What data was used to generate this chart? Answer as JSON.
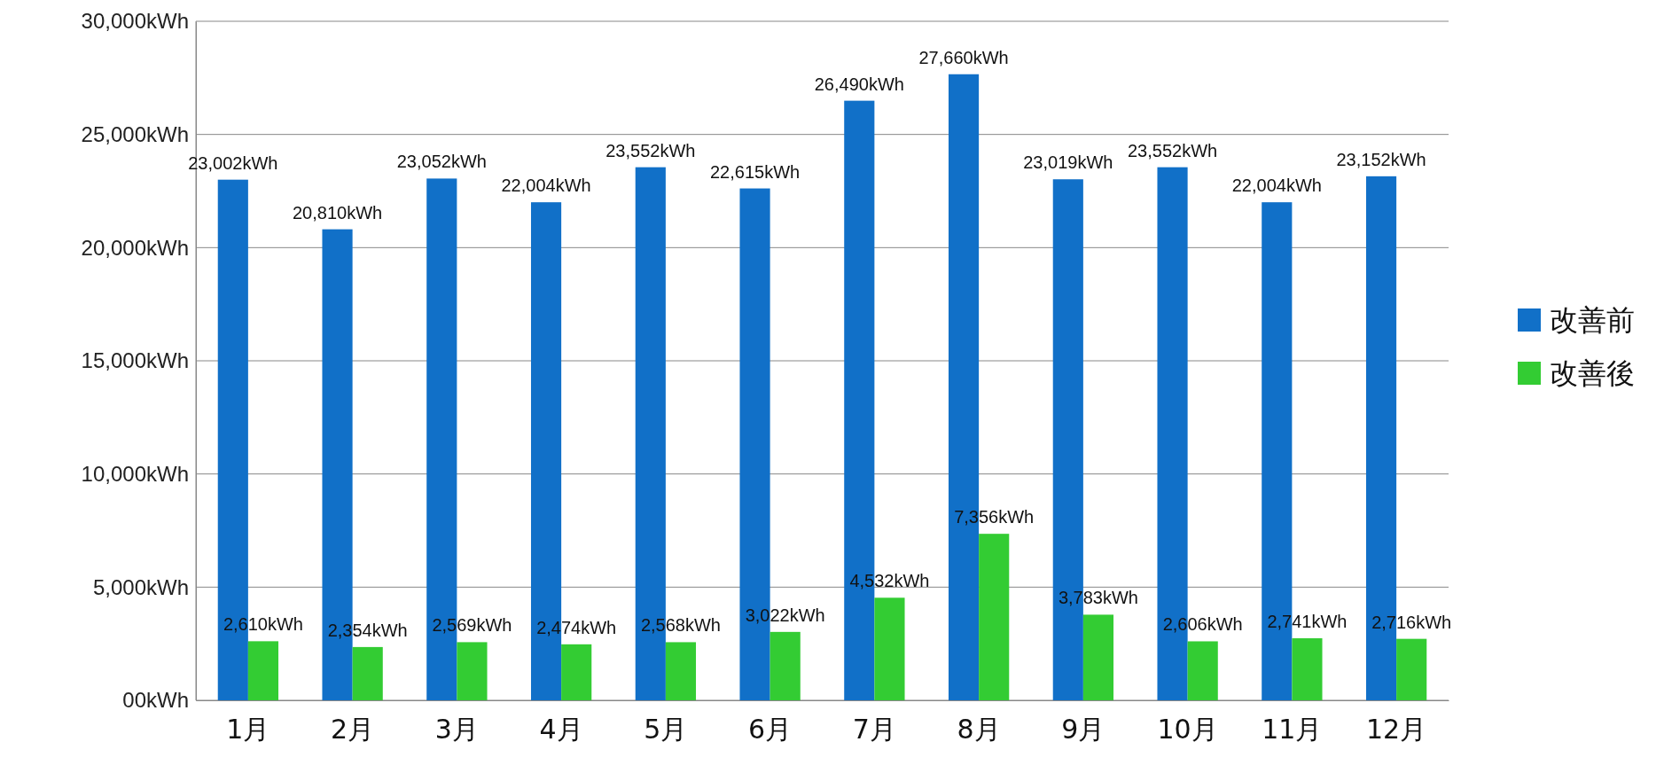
{
  "chart_data": {
    "type": "bar",
    "categories": [
      "1月",
      "2月",
      "3月",
      "4月",
      "5月",
      "6月",
      "7月",
      "8月",
      "9月",
      "10月",
      "11月",
      "12月"
    ],
    "series": [
      {
        "name": "改善前",
        "color": "#1170c8",
        "values": [
          23002,
          20810,
          23052,
          22004,
          23552,
          22615,
          26490,
          27660,
          23019,
          23552,
          22004,
          23152
        ],
        "value_labels": [
          "23,002kWh",
          "20,810kWh",
          "23,052kWh",
          "22,004kWh",
          "23,552kWh",
          "22,615kWh",
          "26,490kWh",
          "27,660kWh",
          "23,019kWh",
          "23,552kWh",
          "22,004kWh",
          "23,152kWh"
        ]
      },
      {
        "name": "改善後",
        "color": "#33cc33",
        "values": [
          2610,
          2354,
          2569,
          2474,
          2568,
          3022,
          4532,
          7356,
          3783,
          2606,
          2741,
          2716
        ],
        "value_labels": [
          "2,610kWh",
          "2,354kWh",
          "2,569kWh",
          "2,474kWh",
          "2,568kWh",
          "3,022kWh",
          "4,532kWh",
          "7,356kWh",
          "3,783kWh",
          "2,606kWh",
          "2,741kWh",
          "2,716kWh"
        ]
      }
    ],
    "ylim": [
      0,
      30000
    ],
    "yticks": [
      {
        "value": 0,
        "label": "00kWh"
      },
      {
        "value": 5000,
        "label": "5,000kWh"
      },
      {
        "value": 10000,
        "label": "10,000kWh"
      },
      {
        "value": 15000,
        "label": "15,000kWh"
      },
      {
        "value": 20000,
        "label": "20,000kWh"
      },
      {
        "value": 25000,
        "label": "25,000kWh"
      },
      {
        "value": 30000,
        "label": "30,000kWh"
      }
    ],
    "grid": "y",
    "legend": "right"
  }
}
